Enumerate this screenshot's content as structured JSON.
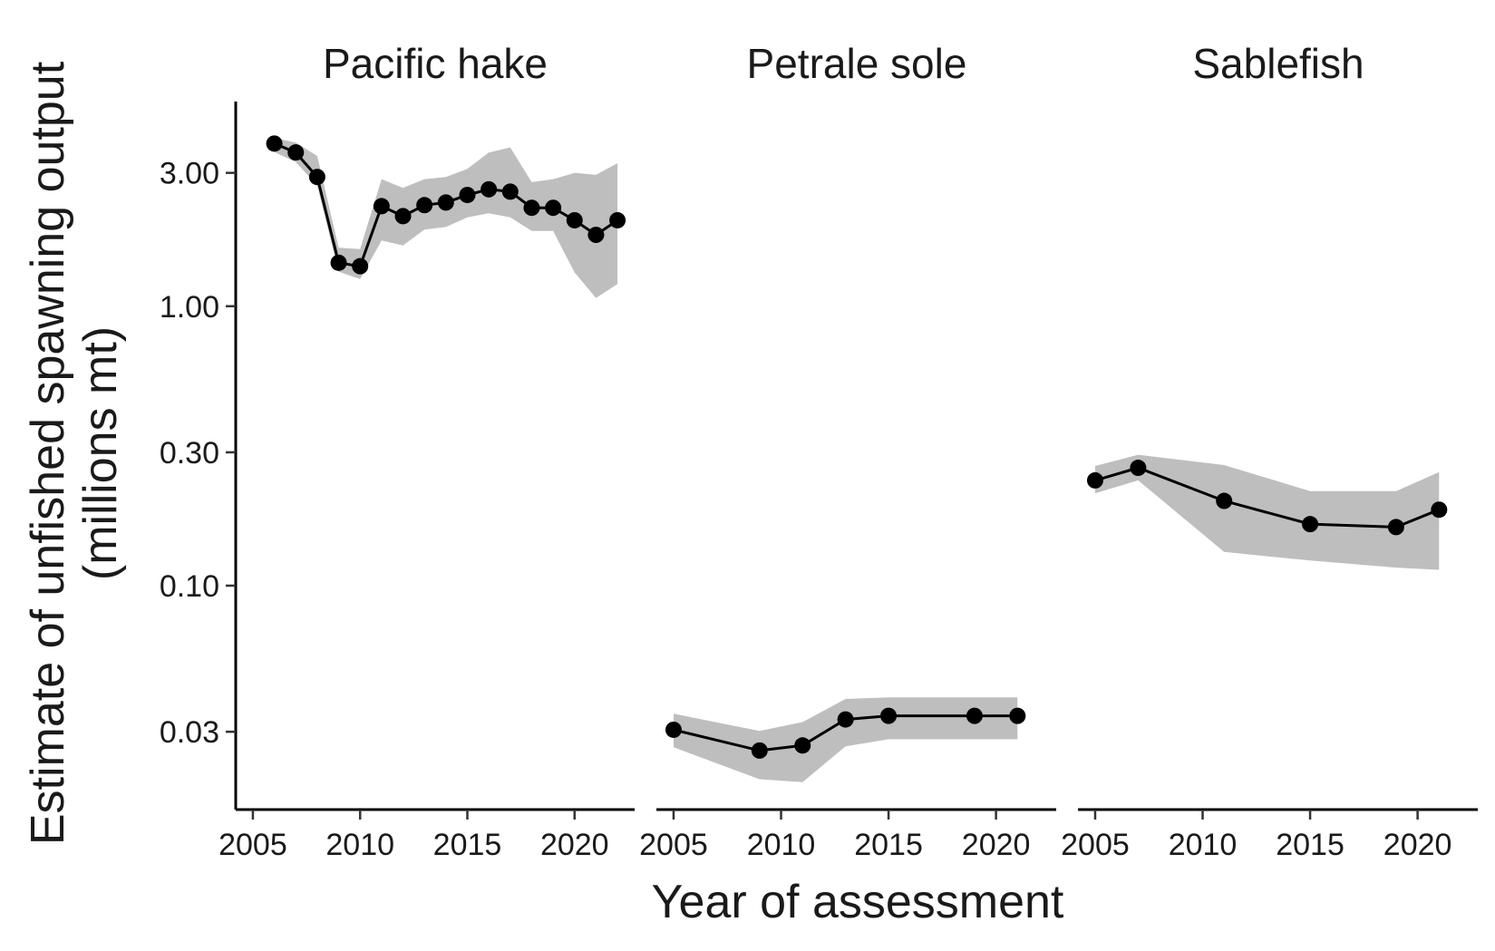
{
  "chart_data": {
    "type": "line",
    "xlabel": "Year of assessment",
    "ylabel": [
      "Estimate of unfished spawning output",
      "(millions mt)"
    ],
    "y_scale": "log",
    "ylim": [
      0.0158,
      5.4
    ],
    "xlim": [
      2004.2,
      2022.8
    ],
    "y_ticks": [
      0.03,
      0.1,
      0.3,
      1.0,
      3.0
    ],
    "y_tick_labels": [
      "0.03",
      "0.10",
      "0.30",
      "1.00",
      "3.00"
    ],
    "x_ticks": [
      2005,
      2010,
      2015,
      2020
    ],
    "x_tick_labels": [
      "2005",
      "2010",
      "2015",
      "2020"
    ],
    "grid": false,
    "legend": "none",
    "colors": {
      "line": "#000000",
      "point": "#000000",
      "ribbon": "#bebebe"
    },
    "panels": [
      {
        "title": "Pacific hake",
        "x": [
          2006,
          2007,
          2008,
          2009,
          2010,
          2011,
          2012,
          2013,
          2014,
          2015,
          2016,
          2017,
          2018,
          2019,
          2020,
          2021,
          2022
        ],
        "y": [
          3.82,
          3.55,
          2.9,
          1.43,
          1.39,
          2.28,
          2.1,
          2.3,
          2.35,
          2.5,
          2.62,
          2.57,
          2.25,
          2.25,
          2.03,
          1.8,
          2.03
        ],
        "lower": [
          3.56,
          3.28,
          2.7,
          1.33,
          1.25,
          1.72,
          1.65,
          1.88,
          1.92,
          2.08,
          2.15,
          2.08,
          1.86,
          1.86,
          1.32,
          1.07,
          1.2
        ],
        "upper": [
          4.0,
          3.85,
          3.45,
          1.62,
          1.6,
          2.85,
          2.65,
          2.85,
          2.9,
          3.1,
          3.55,
          3.7,
          2.78,
          2.85,
          3.0,
          2.95,
          3.25
        ]
      },
      {
        "title": "Petrale sole",
        "x": [
          2005,
          2009,
          2011,
          2013,
          2015,
          2019,
          2021
        ],
        "y": [
          0.0305,
          0.0257,
          0.0268,
          0.0332,
          0.0342,
          0.0342,
          0.0342
        ],
        "lower": [
          0.0264,
          0.0203,
          0.0198,
          0.0266,
          0.0282,
          0.0282,
          0.0282
        ],
        "upper": [
          0.0348,
          0.0302,
          0.0325,
          0.0393,
          0.0398,
          0.0398,
          0.0398
        ]
      },
      {
        "title": "Sablefish",
        "x": [
          2005,
          2007,
          2011,
          2015,
          2019,
          2021
        ],
        "y": [
          0.238,
          0.264,
          0.201,
          0.166,
          0.162,
          0.187
        ],
        "lower": [
          0.214,
          0.238,
          0.132,
          0.123,
          0.116,
          0.114
        ],
        "upper": [
          0.268,
          0.294,
          0.27,
          0.218,
          0.218,
          0.255
        ]
      }
    ]
  }
}
